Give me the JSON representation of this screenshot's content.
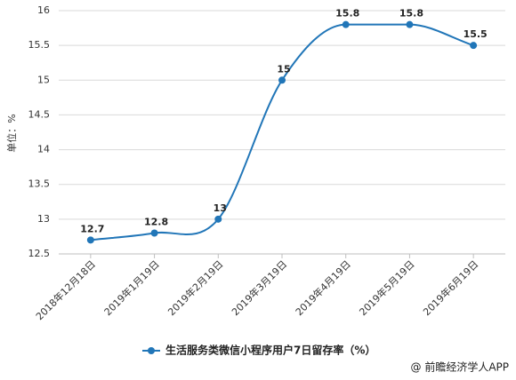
{
  "chart_data": {
    "type": "line",
    "y_label": "单位：%",
    "categories": [
      "2018年12月18日",
      "2019年1月19日",
      "2019年2月19日",
      "2019年3月19日",
      "2019年4月19日",
      "2019年5月19日",
      "2019年6月19日"
    ],
    "series": [
      {
        "name": "生活服务类微信小程序用户7日留存率（%）",
        "color": "#2176b8",
        "values": [
          12.7,
          12.8,
          13,
          15,
          15.8,
          15.8,
          15.5
        ]
      }
    ],
    "ylim": [
      12.5,
      16
    ],
    "yticks": [
      12.5,
      13,
      13.5,
      14,
      14.5,
      15,
      15.5,
      16
    ],
    "grid": true,
    "source": "@ 前瞻经济学人APP"
  }
}
